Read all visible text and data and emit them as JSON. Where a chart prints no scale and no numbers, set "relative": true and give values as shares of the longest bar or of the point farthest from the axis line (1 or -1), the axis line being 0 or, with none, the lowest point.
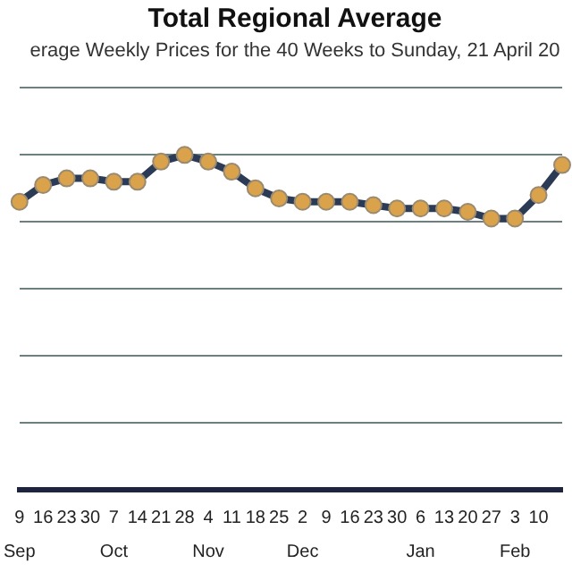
{
  "chart_data": {
    "type": "line",
    "title": "Total Regional Average",
    "subtitle": "erage Weekly Prices for the 40 Weeks to Sunday, 21 April 20",
    "relative": true,
    "categories": [
      "9\nSep",
      "16",
      "23",
      "30",
      "7\nOct",
      "14",
      "21",
      "28",
      "4\nNov",
      "11",
      "18",
      "25",
      "2\nDec",
      "9",
      "16",
      "23",
      "30",
      "6\nJan",
      "13",
      "20",
      "27",
      "3\nFeb",
      "10",
      null
    ],
    "series": [
      {
        "color": "#2b3a55",
        "colors": [
          "#d9a24b",
          "#d9a24b",
          "#d9a24b",
          "#d9a24b",
          "#d9a24b",
          "#d9a24b",
          "#d9a24b",
          "#d9a24b",
          "#d9a24b",
          "#d9a24b",
          "#d9a24b",
          "#d9a24b",
          "#d9a24b",
          "#d9a24b",
          "#d9a24b",
          "#d9a24b",
          "#d9a24b",
          "#d9a24b",
          "#d9a24b",
          "#d9a24b",
          "#d9a24b",
          "#d9a24b",
          "#d9a24b",
          "#d9a24b"
        ],
        "values": [
          0.86,
          0.91,
          0.93,
          0.93,
          0.92,
          0.92,
          0.98,
          1,
          0.98,
          0.95,
          0.9,
          0.87,
          0.86,
          0.86,
          0.86,
          0.85,
          0.84,
          0.84,
          0.84,
          0.83,
          0.81,
          0.81,
          0.88,
          0.97
        ]
      }
    ],
    "marker": "circle",
    "grid": "y",
    "legend": false
  }
}
